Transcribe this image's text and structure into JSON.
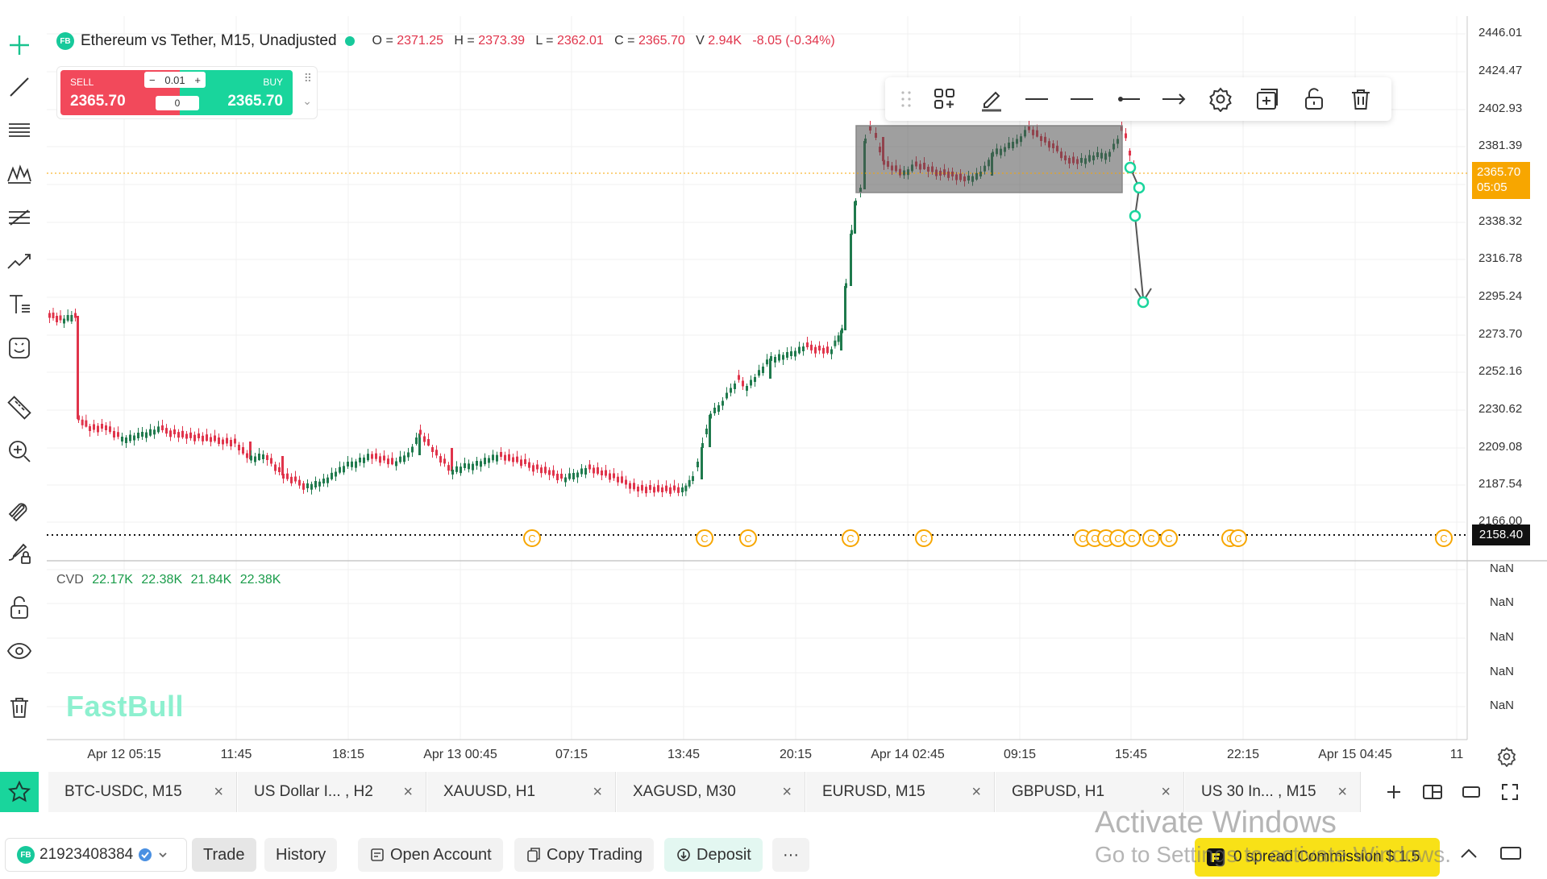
{
  "chart": {
    "symbol_title": "Ethereum vs Tether, M15, Unadjusted",
    "badge": "FB",
    "ohlc": {
      "o_label": "O =",
      "o": "2371.25",
      "h_label": "H =",
      "h": "2373.39",
      "l_label": "L =",
      "l": "2362.01",
      "c_label": "C =",
      "c": "2365.70",
      "v_label": "V",
      "v": "2.94K",
      "change": "-8.05 (-0.34%)"
    },
    "price_axis": [
      "2446.01",
      "2424.47",
      "2402.93",
      "2381.39",
      "2338.32",
      "2316.78",
      "2295.24",
      "2273.70",
      "2252.16",
      "2230.62",
      "2209.08",
      "2187.54",
      "2166.00"
    ],
    "current_price": "2365.70",
    "countdown": "05:05",
    "hline_price": "2158.40",
    "nan_labels": [
      "NaN",
      "NaN",
      "NaN",
      "NaN",
      "NaN"
    ],
    "time_axis": [
      "Apr 12 05:15",
      "11:45",
      "18:15",
      "Apr 13 00:45",
      "07:15",
      "13:45",
      "20:15",
      "Apr 14 02:45",
      "09:15",
      "15:45",
      "22:15",
      "Apr 15 04:45",
      "11"
    ],
    "cvd": {
      "label": "CVD",
      "values": [
        "22.17K",
        "22.38K",
        "21.84K",
        "22.38K"
      ]
    },
    "watermark": "FastBull",
    "colors": {
      "up": "#1f7a4d",
      "down": "#e0344b",
      "accent": "#19d59c",
      "current": "#f7a600",
      "event": "#f7a600"
    }
  },
  "trade_widget": {
    "sell_label": "SELL",
    "sell_price": "2365.70",
    "buy_label": "BUY",
    "buy_price": "2365.70",
    "qty_minus": "−",
    "qty": "0.01",
    "qty_plus": "+",
    "spread": "0"
  },
  "drawing_toolbar": {
    "tools": [
      "drag-handle-icon",
      "templates-icon",
      "pencil-color-icon",
      "line-style-solid-icon",
      "line-width-icon",
      "left-end-icon",
      "right-arrow-icon",
      "settings-icon",
      "clone-icon",
      "unlock-icon",
      "trash-icon"
    ]
  },
  "left_toolbar": {
    "tools": [
      "crosshair-icon",
      "trendline-icon",
      "horizontal-lines-icon",
      "patterns-icon",
      "fib-icon",
      "forecast-icon",
      "text-icon",
      "emoji-icon",
      "ruler-icon",
      "zoom-in-icon",
      "magnet-icon",
      "brush-lock-icon",
      "lock-icon",
      "eye-icon",
      "trash-icon"
    ]
  },
  "tabs": [
    {
      "label": "BTC-USDC, M15"
    },
    {
      "label": "US Dollar I... , H2"
    },
    {
      "label": "XAUUSD, H1"
    },
    {
      "label": "XAGUSD, M30"
    },
    {
      "label": "EURUSD, M15"
    },
    {
      "label": "GBPUSD, H1"
    },
    {
      "label": "US 30 In... , M15"
    }
  ],
  "tab_close": "×",
  "bottom_bar": {
    "account_badge": "FB",
    "account_id": "21923408384",
    "trade": "Trade",
    "history": "History",
    "open_account": "Open Account",
    "copy_trading": "Copy Trading",
    "deposit": "Deposit",
    "more": "···",
    "promo": "0 spread Commission $ 1.5"
  },
  "windows_watermark": {
    "line1": "Activate Windows",
    "line2": "Go to Settings to activate Windows."
  }
}
